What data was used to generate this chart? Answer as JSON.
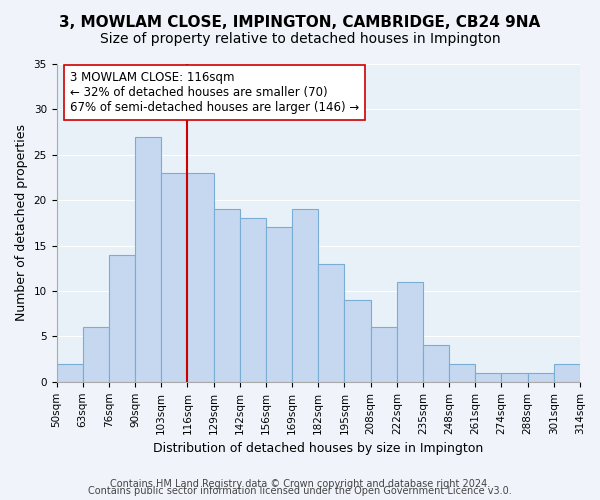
{
  "title": "3, MOWLAM CLOSE, IMPINGTON, CAMBRIDGE, CB24 9NA",
  "subtitle": "Size of property relative to detached houses in Impington",
  "xlabel": "Distribution of detached houses by size in Impington",
  "ylabel": "Number of detached properties",
  "footer_line1": "Contains HM Land Registry data © Crown copyright and database right 2024.",
  "footer_line2": "Contains public sector information licensed under the Open Government Licence v3.0.",
  "bin_labels": [
    "50sqm",
    "63sqm",
    "76sqm",
    "90sqm",
    "103sqm",
    "116sqm",
    "129sqm",
    "142sqm",
    "156sqm",
    "169sqm",
    "182sqm",
    "195sqm",
    "208sqm",
    "222sqm",
    "235sqm",
    "248sqm",
    "261sqm",
    "274sqm",
    "288sqm",
    "301sqm",
    "314sqm"
  ],
  "bar_heights": [
    2,
    6,
    14,
    27,
    23,
    23,
    19,
    18,
    17,
    19,
    13,
    9,
    6,
    11,
    4,
    2,
    1,
    1,
    1,
    2
  ],
  "bar_color": "#c5d8f0",
  "bar_edge_color": "#7aadd4",
  "vline_x_index": 5,
  "vline_color": "#cc0000",
  "annotation_text": "3 MOWLAM CLOSE: 116sqm\n← 32% of detached houses are smaller (70)\n67% of semi-detached houses are larger (146) →",
  "annotation_box_edge": "#cc0000",
  "annotation_box_fill": "white",
  "ylim": [
    0,
    35
  ],
  "yticks": [
    0,
    5,
    10,
    15,
    20,
    25,
    30,
    35
  ],
  "background_color": "#f0f4fa",
  "plot_background": "#e8f0f8",
  "title_fontsize": 11,
  "subtitle_fontsize": 10,
  "axis_label_fontsize": 9,
  "tick_fontsize": 7.5,
  "annotation_fontsize": 8.5,
  "footer_fontsize": 7
}
